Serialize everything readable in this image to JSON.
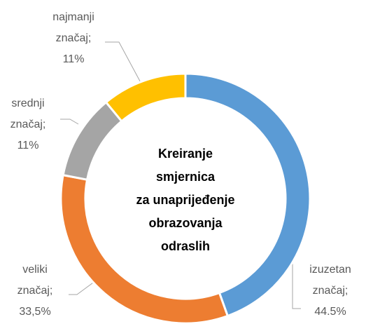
{
  "chart_data": {
    "type": "donut",
    "title": [
      "Kreiranje",
      "smjernica",
      "za unaprijeđenje",
      "obrazovanja",
      "odraslih"
    ],
    "labels": [
      [
        "izuzetan",
        "značaj;",
        "44.5%"
      ],
      [
        "veliki",
        "značaj;",
        "33,5%"
      ],
      [
        "srednji",
        "značaj;",
        "11%"
      ],
      [
        "najmanji",
        "značaj;",
        "11%"
      ]
    ],
    "values": [
      44.5,
      33.5,
      11,
      11
    ],
    "colors": [
      "#5b9bd5",
      "#ed7d31",
      "#a5a5a5",
      "#ffc000"
    ]
  }
}
